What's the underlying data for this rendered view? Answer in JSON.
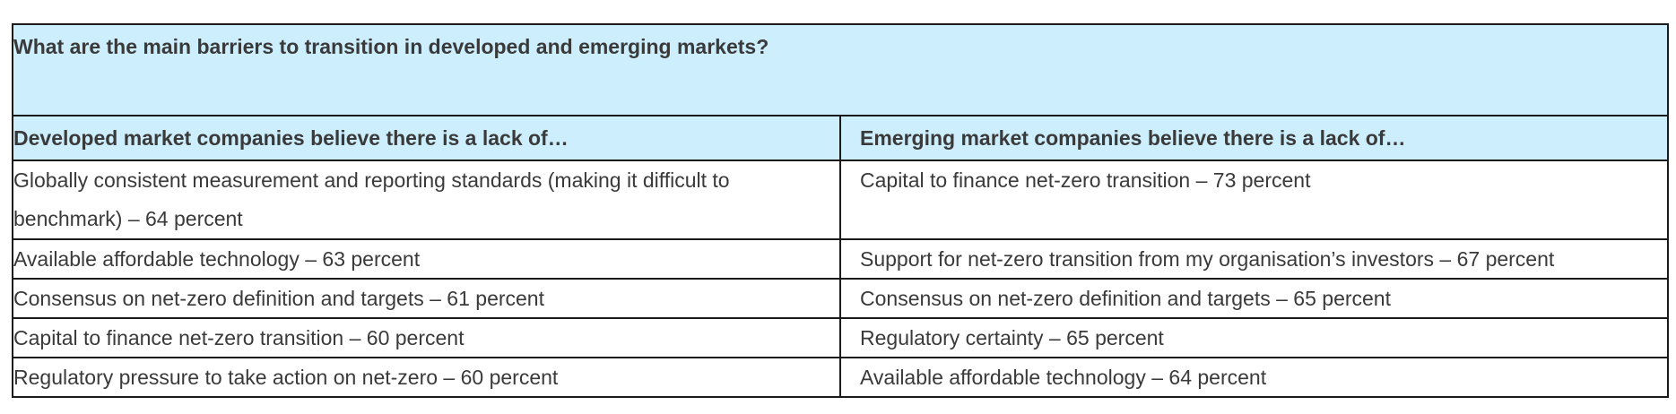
{
  "table": {
    "title": "What are the main barriers to transition in developed and emerging markets?",
    "headers": {
      "developed": "Developed market companies believe there is a lack of…",
      "emerging": "Emerging market companies believe there is a lack of…"
    },
    "rows": [
      {
        "developed": "Globally consistent measurement and reporting standards (making it difficult to benchmark) – 64 percent",
        "emerging": "Capital to finance net-zero transition – 73 percent"
      },
      {
        "developed": "Available affordable technology – 63 percent",
        "emerging": "Support for net-zero transition from my organisation’s investors – 67 percent"
      },
      {
        "developed": "Consensus on net-zero definition and targets – 61 percent",
        "emerging": "Consensus on net-zero definition and targets – 65 percent"
      },
      {
        "developed": "Capital to finance net-zero transition – 60 percent",
        "emerging": "Regulatory certainty – 65 percent"
      },
      {
        "developed": "Regulatory pressure to take action on net-zero – 60 percent",
        "emerging": "Available affordable technology – 64 percent"
      }
    ]
  },
  "colors": {
    "header_background": "#cdeefd",
    "border": "#1a1a1a",
    "text": "#3a3a3a"
  }
}
